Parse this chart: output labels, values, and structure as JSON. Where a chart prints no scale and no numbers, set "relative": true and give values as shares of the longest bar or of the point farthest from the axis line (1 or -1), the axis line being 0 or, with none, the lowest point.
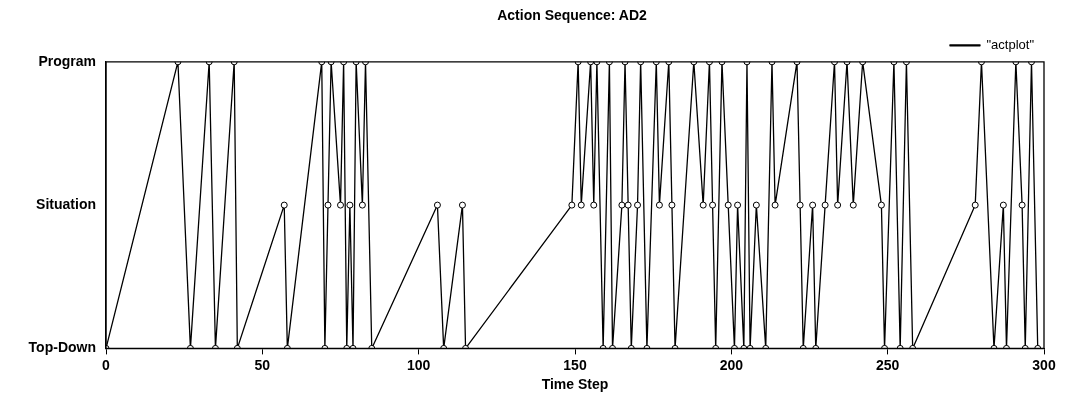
{
  "chart_data": {
    "type": "line",
    "title": "Action Sequence: AD2",
    "xlabel": "Time Step",
    "relative": true,
    "xlim": [
      0,
      300
    ],
    "xticks": [
      0,
      50,
      100,
      150,
      200,
      250,
      300
    ],
    "annotations": [
      "Top-Down",
      "Situation",
      "Program"
    ],
    "legend": "top right",
    "marker": "circle",
    "line_style": "solid",
    "series": [
      {
        "name": "\"actplot\"",
        "color": "#000000",
        "x": [
          0,
          23,
          27,
          33,
          35,
          41,
          42,
          57,
          58,
          69,
          70,
          71,
          72,
          75,
          76,
          77,
          78,
          79,
          80,
          82,
          83,
          85,
          106,
          108,
          114,
          115,
          149,
          151,
          152,
          155,
          156,
          157,
          159,
          161,
          162,
          165,
          166,
          167,
          168,
          170,
          171,
          173,
          176,
          177,
          180,
          181,
          182,
          188,
          191,
          193,
          194,
          195,
          197,
          199,
          201,
          202,
          204,
          205,
          206,
          208,
          211,
          213,
          214,
          221,
          222,
          223,
          226,
          227,
          230,
          233,
          234,
          237,
          239,
          242,
          248,
          249,
          252,
          254,
          256,
          258,
          278,
          280,
          284,
          287,
          288,
          291,
          293,
          294,
          296,
          298
        ],
        "values": [
          0,
          1,
          0,
          1,
          0,
          1,
          0,
          0.5,
          0,
          1,
          0,
          0.5,
          1,
          0.5,
          1,
          0,
          0.5,
          0,
          1,
          0.5,
          1,
          0,
          0.5,
          0,
          0.5,
          0,
          0.5,
          1,
          0.5,
          1,
          0.5,
          1,
          0,
          1,
          0,
          0.5,
          1,
          0.5,
          0,
          0.5,
          1,
          0,
          1,
          0.5,
          1,
          0.5,
          0,
          1,
          0.5,
          1,
          0.5,
          0,
          1,
          0.5,
          0,
          0.5,
          0,
          1,
          0,
          0.5,
          0,
          1,
          0.5,
          1,
          0.5,
          0,
          0.5,
          0,
          0.5,
          1,
          0.5,
          1,
          0.5,
          1,
          0.5,
          0,
          1,
          0,
          1,
          0,
          0.5,
          1,
          0,
          0.5,
          0,
          1,
          0.5,
          0,
          1,
          0
        ]
      }
    ]
  }
}
